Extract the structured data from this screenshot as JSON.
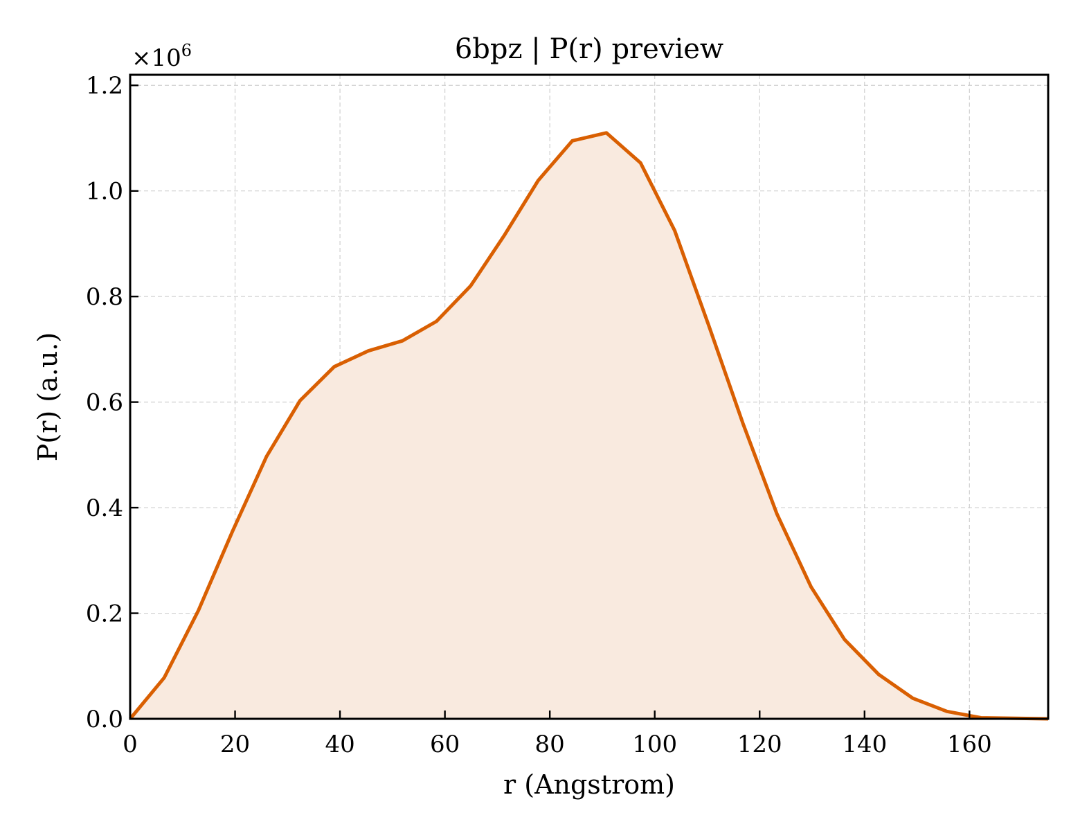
{
  "chart_data": {
    "type": "area",
    "title": "6bpz | P(r) preview",
    "xlabel": "r (Angstrom)",
    "ylabel": "P(r) (a.u.)",
    "y_multiplier_label": "×10⁶",
    "y_multiplier_base": "×10",
    "y_multiplier_exp": "6",
    "y_scale": 1000000,
    "xlim": [
      0,
      175
    ],
    "ylim": [
      0,
      1.22
    ],
    "x_ticks": [
      0,
      20,
      40,
      60,
      80,
      100,
      120,
      140,
      160
    ],
    "y_ticks": [
      0.0,
      0.2,
      0.4,
      0.6,
      0.8,
      1.0,
      1.2
    ],
    "y_tick_labels": [
      "0.0",
      "0.2",
      "0.4",
      "0.6",
      "0.8",
      "1.0",
      "1.2"
    ],
    "grid": true,
    "line_color": "#d95f02",
    "fill_color": "#f9eadf",
    "series": [
      {
        "x": [
          0,
          6.5,
          13.0,
          19.5,
          26.0,
          32.4,
          38.9,
          45.4,
          51.9,
          58.4,
          64.9,
          71.4,
          77.8,
          84.3,
          90.8,
          97.3,
          103.8,
          110.3,
          116.8,
          123.3,
          129.8,
          136.2,
          142.7,
          149.2,
          155.7,
          162.2,
          168.7,
          175.0
        ],
        "y": [
          0.0,
          0.078,
          0.205,
          0.355,
          0.497,
          0.603,
          0.667,
          0.697,
          0.716,
          0.753,
          0.82,
          0.917,
          1.02,
          1.095,
          1.11,
          1.053,
          0.925,
          0.745,
          0.56,
          0.388,
          0.25,
          0.15,
          0.084,
          0.039,
          0.014,
          0.002,
          0.001,
          0.0
        ]
      }
    ]
  }
}
